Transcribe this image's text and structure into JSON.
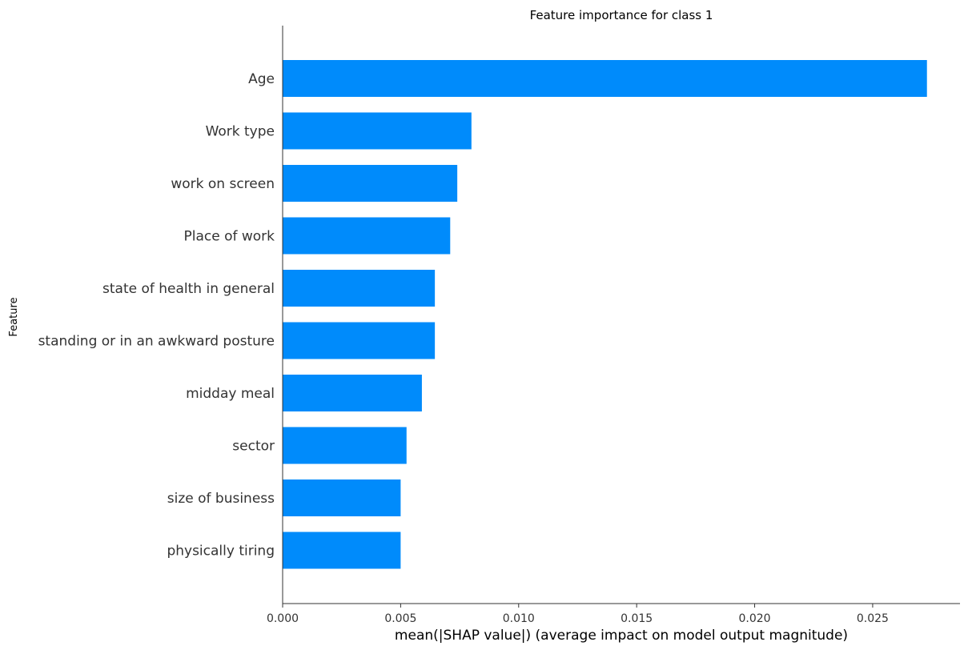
{
  "chart_data": {
    "type": "bar",
    "orientation": "horizontal",
    "title": "Feature importance for class 1",
    "xlabel": "mean(|SHAP value|) (average impact on model output magnitude)",
    "ylabel": "Feature",
    "xlim": [
      0,
      0.0287
    ],
    "xticks": [
      0.0,
      0.005,
      0.01,
      0.015,
      0.02,
      0.025
    ],
    "xtick_labels": [
      "0.000",
      "0.005",
      "0.010",
      "0.015",
      "0.020",
      "0.025"
    ],
    "bar_color": "#008bfb",
    "grid": false,
    "categories": [
      "Age",
      "Work type",
      "work on screen",
      "Place of work",
      "state of health in general",
      "standing or in an awkward posture",
      "midday meal",
      "sector",
      "size of business",
      "physically tiring"
    ],
    "values": [
      0.0273,
      0.008,
      0.0074,
      0.0071,
      0.00645,
      0.00645,
      0.0059,
      0.00525,
      0.005,
      0.005
    ]
  }
}
